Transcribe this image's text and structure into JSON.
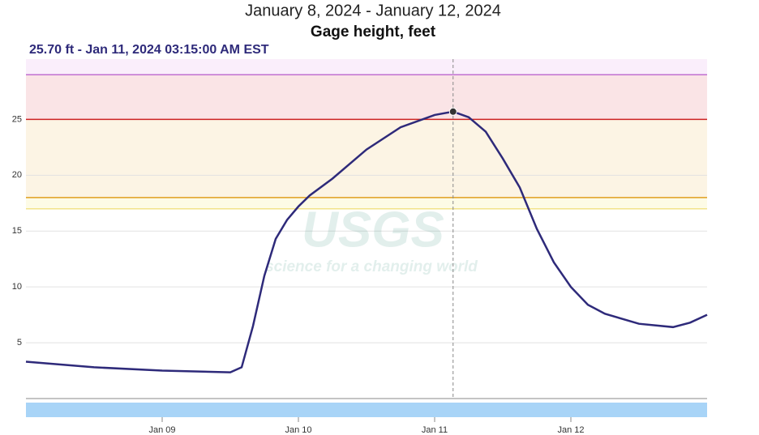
{
  "chart_data": {
    "type": "line",
    "title": "January 8, 2024 - January 12, 2024",
    "subtitle": "Gage height, feet",
    "watermark": {
      "logo": "USGS",
      "tagline": "science for a changing world"
    },
    "x": [
      "2024-01-08T00:00",
      "2024-01-08T12:00",
      "2024-01-09T00:00",
      "2024-01-09T12:00",
      "2024-01-09T14:00",
      "2024-01-09T16:00",
      "2024-01-09T18:00",
      "2024-01-09T20:00",
      "2024-01-09T22:00",
      "2024-01-10T00:00",
      "2024-01-10T02:00",
      "2024-01-10T06:00",
      "2024-01-10T12:00",
      "2024-01-10T18:00",
      "2024-01-11T00:00",
      "2024-01-11T03:15",
      "2024-01-11T06:00",
      "2024-01-11T09:00",
      "2024-01-11T12:00",
      "2024-01-11T15:00",
      "2024-01-11T18:00",
      "2024-01-11T21:00",
      "2024-01-12T00:00",
      "2024-01-12T03:00",
      "2024-01-12T06:00",
      "2024-01-12T12:00",
      "2024-01-12T18:00",
      "2024-01-12T21:00",
      "2024-01-13T00:00"
    ],
    "series": [
      {
        "color": "#2e2a7a",
        "values": [
          3.3,
          2.8,
          2.5,
          2.35,
          2.8,
          6.5,
          11.0,
          14.3,
          16.0,
          17.2,
          18.2,
          19.7,
          22.3,
          24.3,
          25.4,
          25.7,
          25.2,
          23.9,
          21.5,
          18.9,
          15.2,
          12.2,
          10.0,
          8.4,
          7.6,
          6.7,
          6.4,
          6.8,
          7.5
        ]
      }
    ],
    "xlim": [
      "2024-01-08T00:00",
      "2024-01-13T00:00"
    ],
    "xticks": [
      {
        "value": "2024-01-09T00:00",
        "label": "Jan 09"
      },
      {
        "value": "2024-01-10T00:00",
        "label": "Jan 10"
      },
      {
        "value": "2024-01-11T00:00",
        "label": "Jan 11"
      },
      {
        "value": "2024-01-12T00:00",
        "label": "Jan 12"
      }
    ],
    "ylim": [
      0,
      30.4
    ],
    "yticks": [
      5,
      10,
      15,
      20,
      25
    ],
    "grid": true,
    "thresholds": [
      {
        "value": 17,
        "color": "#f2e38a",
        "band_color": "#fdfbe6"
      },
      {
        "value": 18,
        "color": "#e0a020",
        "band_color": "#fcf4e4"
      },
      {
        "value": 25,
        "color": "#cc2222",
        "band_color": "#fae4e6"
      },
      {
        "value": 29,
        "color": "#c070d0",
        "band_color": "#faeefb"
      }
    ],
    "highlight": {
      "x": "2024-01-11T03:15",
      "value": 25.7,
      "label": "25.70 ft - Jan 11, 2024 03:15:00 AM EST"
    }
  }
}
